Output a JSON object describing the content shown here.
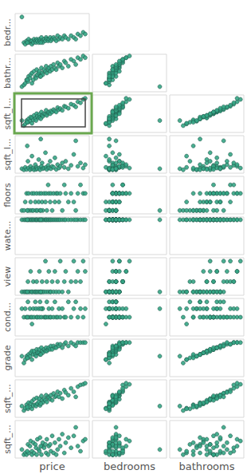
{
  "chart_data": {
    "type": "scatter_matrix",
    "row_labels": [
      "bedr...",
      "bathr...",
      "sqft_l...",
      "sqft_l...",
      "floors",
      "wate...",
      "view",
      "cond...",
      "grade",
      "sqft_...",
      "sqft_..."
    ],
    "column_labels": [
      "price",
      "bedrooms",
      "bathrooms"
    ],
    "xlim": [
      -0.05,
      1.05
    ],
    "ylim": [
      -0.05,
      1.05
    ],
    "tick_labels": false,
    "grid": false,
    "color": "#35a585",
    "marker": "circle",
    "points": [
      [
        0.05,
        0.95,
        0.1,
        0.3,
        0.08,
        0.05,
        0.97,
        0.05,
        0.75,
        0.55,
        0.28,
        0.2
      ],
      [
        0.08,
        0.2,
        0.15,
        0.15,
        0.05,
        0.05,
        0.97,
        0.05,
        0.5,
        0.35,
        0.15,
        0.05
      ],
      [
        0.1,
        0.15,
        0.2,
        0.2,
        0.12,
        0.3,
        0.97,
        0.05,
        0.75,
        0.45,
        0.22,
        0.1
      ],
      [
        0.12,
        0.25,
        0.3,
        0.3,
        0.06,
        0.55,
        0.97,
        0.05,
        0.5,
        0.55,
        0.32,
        0.05
      ],
      [
        0.14,
        0.2,
        0.25,
        0.25,
        0.3,
        0.05,
        0.97,
        0.35,
        0.95,
        0.5,
        0.2,
        0.35
      ],
      [
        0.15,
        0.3,
        0.4,
        0.35,
        0.1,
        0.55,
        0.97,
        0.05,
        0.5,
        0.6,
        0.38,
        0.1
      ],
      [
        0.17,
        0.2,
        0.35,
        0.28,
        0.05,
        0.05,
        0.97,
        0.05,
        0.75,
        0.55,
        0.25,
        0.3
      ],
      [
        0.18,
        0.25,
        0.45,
        0.4,
        0.15,
        0.3,
        0.97,
        0.65,
        0.5,
        0.65,
        0.35,
        0.45
      ],
      [
        0.2,
        0.15,
        0.2,
        0.22,
        0.45,
        0.05,
        0.97,
        0.05,
        0.3,
        0.45,
        0.2,
        0.15
      ],
      [
        0.2,
        0.25,
        0.5,
        0.38,
        0.08,
        0.55,
        0.97,
        0.05,
        0.5,
        0.7,
        0.42,
        0.05
      ],
      [
        0.22,
        0.2,
        0.3,
        0.32,
        0.1,
        0.05,
        0.97,
        0.35,
        0.75,
        0.6,
        0.3,
        0.4
      ],
      [
        0.23,
        0.3,
        0.55,
        0.45,
        0.05,
        0.55,
        0.97,
        0.05,
        0.5,
        0.7,
        0.48,
        0.1
      ],
      [
        0.25,
        0.25,
        0.4,
        0.35,
        0.2,
        0.3,
        0.97,
        0.05,
        0.95,
        0.6,
        0.32,
        0.35
      ],
      [
        0.26,
        0.2,
        0.35,
        0.3,
        0.06,
        0.05,
        0.97,
        0.05,
        0.75,
        0.55,
        0.28,
        0.25
      ],
      [
        0.27,
        0.3,
        0.6,
        0.5,
        0.12,
        0.55,
        0.97,
        0.35,
        0.5,
        0.75,
        0.52,
        0.05
      ],
      [
        0.28,
        0.25,
        0.45,
        0.42,
        0.08,
        0.05,
        0.97,
        0.05,
        0.5,
        0.65,
        0.35,
        0.5
      ],
      [
        0.3,
        0.2,
        0.5,
        0.38,
        0.35,
        0.3,
        0.97,
        0.05,
        0.75,
        0.65,
        0.4,
        0.2
      ],
      [
        0.31,
        0.3,
        0.55,
        0.48,
        0.1,
        0.55,
        0.97,
        0.65,
        0.5,
        0.75,
        0.5,
        0.15
      ],
      [
        0.32,
        0.25,
        0.4,
        0.4,
        0.05,
        0.05,
        0.97,
        0.05,
        0.95,
        0.6,
        0.3,
        0.55
      ],
      [
        0.34,
        0.35,
        0.65,
        0.55,
        0.15,
        0.55,
        0.97,
        0.05,
        0.5,
        0.8,
        0.58,
        0.05
      ],
      [
        0.35,
        0.25,
        0.5,
        0.45,
        0.25,
        0.3,
        0.97,
        0.35,
        0.75,
        0.7,
        0.45,
        0.3
      ],
      [
        0.36,
        0.2,
        0.45,
        0.42,
        0.08,
        0.05,
        0.97,
        0.05,
        0.75,
        0.65,
        0.38,
        0.4
      ],
      [
        0.38,
        0.3,
        0.6,
        0.5,
        0.1,
        0.55,
        0.97,
        0.05,
        0.5,
        0.75,
        0.5,
        0.25
      ],
      [
        0.4,
        0.25,
        0.55,
        0.48,
        0.55,
        0.3,
        0.97,
        0.95,
        0.5,
        0.7,
        0.45,
        0.35
      ],
      [
        0.41,
        0.35,
        0.7,
        0.6,
        0.12,
        0.55,
        0.97,
        0.05,
        0.5,
        0.8,
        0.6,
        0.1
      ],
      [
        0.42,
        0.3,
        0.5,
        0.45,
        0.06,
        0.05,
        0.97,
        0.35,
        0.95,
        0.7,
        0.4,
        0.5
      ],
      [
        0.44,
        0.25,
        0.6,
        0.52,
        0.18,
        0.8,
        0.97,
        0.05,
        0.5,
        0.75,
        0.55,
        0.05
      ],
      [
        0.45,
        0.3,
        0.65,
        0.55,
        0.1,
        0.55,
        0.97,
        0.65,
        0.75,
        0.8,
        0.52,
        0.3
      ],
      [
        0.47,
        0.35,
        0.55,
        0.5,
        0.3,
        0.3,
        0.97,
        0.05,
        0.5,
        0.75,
        0.48,
        0.35
      ],
      [
        0.48,
        0.25,
        0.7,
        0.58,
        0.08,
        0.55,
        0.97,
        0.05,
        0.5,
        0.85,
        0.6,
        0.15
      ],
      [
        0.5,
        0.3,
        0.6,
        0.55,
        0.15,
        0.05,
        0.97,
        0.35,
        0.75,
        0.75,
        0.45,
        0.6
      ],
      [
        0.52,
        0.35,
        0.75,
        0.62,
        0.12,
        0.55,
        0.97,
        0.05,
        0.5,
        0.85,
        0.65,
        0.1
      ],
      [
        0.54,
        0.3,
        0.65,
        0.58,
        0.4,
        0.3,
        0.97,
        0.65,
        0.95,
        0.8,
        0.55,
        0.4
      ],
      [
        0.56,
        0.25,
        0.6,
        0.55,
        0.06,
        0.55,
        0.97,
        0.05,
        0.5,
        0.8,
        0.58,
        0.05
      ],
      [
        0.58,
        0.4,
        0.8,
        0.68,
        0.2,
        0.55,
        0.97,
        0.35,
        0.5,
        0.9,
        0.7,
        0.2
      ],
      [
        0.6,
        0.3,
        0.7,
        0.62,
        0.1,
        0.3,
        0.97,
        0.05,
        0.75,
        0.85,
        0.55,
        0.5
      ],
      [
        0.62,
        0.35,
        0.75,
        0.65,
        0.15,
        0.55,
        0.97,
        0.95,
        0.5,
        0.9,
        0.66,
        0.3
      ],
      [
        0.65,
        0.3,
        0.65,
        0.6,
        0.25,
        0.05,
        0.97,
        0.05,
        0.75,
        0.8,
        0.5,
        0.65
      ],
      [
        0.68,
        0.4,
        0.85,
        0.72,
        0.12,
        0.8,
        0.97,
        0.35,
        0.5,
        0.9,
        0.75,
        0.1
      ],
      [
        0.7,
        0.35,
        0.8,
        0.7,
        0.3,
        0.55,
        0.97,
        0.65,
        0.5,
        0.95,
        0.68,
        0.4
      ],
      [
        0.74,
        0.3,
        0.7,
        0.66,
        0.08,
        0.3,
        0.97,
        0.05,
        0.95,
        0.85,
        0.6,
        0.55
      ],
      [
        0.78,
        0.4,
        0.9,
        0.78,
        0.18,
        0.55,
        0.97,
        0.35,
        0.5,
        0.95,
        0.8,
        0.25
      ],
      [
        0.82,
        0.35,
        0.85,
        0.75,
        0.5,
        0.3,
        0.97,
        0.95,
        0.75,
        0.9,
        0.7,
        0.6
      ],
      [
        0.88,
        0.45,
        0.95,
        0.85,
        0.15,
        0.55,
        0.97,
        0.65,
        0.5,
        0.95,
        0.85,
        0.3
      ],
      [
        0.92,
        0.4,
        0.9,
        0.82,
        0.25,
        0.8,
        0.97,
        0.35,
        0.75,
        0.95,
        0.9,
        0.15
      ],
      [
        0.96,
        0.5,
        1.0,
        0.92,
        0.1,
        0.55,
        0.97,
        0.95,
        0.5,
        0.95,
        0.92,
        0.45
      ],
      [
        0.99,
        0.45,
        0.95,
        0.95,
        0.2,
        0.55,
        0.97,
        0.65,
        0.75,
        0.95,
        0.95,
        0.5
      ],
      [
        0.85,
        0.3,
        0.75,
        0.7,
        0.9,
        0.05,
        0.97,
        0.35,
        0.95,
        0.85,
        0.55,
        0.85
      ],
      [
        0.13,
        0.2,
        0.3,
        0.25,
        0.75,
        0.05,
        0.97,
        0.05,
        0.5,
        0.5,
        0.25,
        0.15
      ],
      [
        0.33,
        0.2,
        0.4,
        0.35,
        0.95,
        0.05,
        0.97,
        0.05,
        0.75,
        0.6,
        0.35,
        0.3
      ]
    ]
  }
}
